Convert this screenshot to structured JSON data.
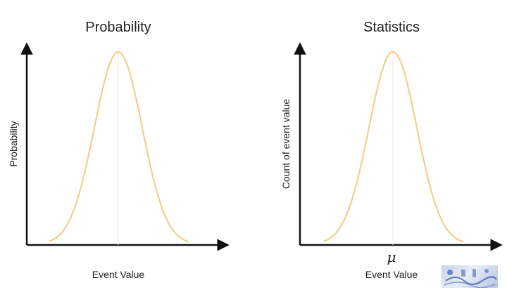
{
  "chart_data": [
    {
      "type": "line",
      "title": "Probability",
      "xlabel": "Event Value",
      "ylabel": "Probability",
      "x_tick_labels": [],
      "series": [
        {
          "shape": "normal-bell-curve",
          "color": "#f2cf8c",
          "mean_line": true
        }
      ]
    },
    {
      "type": "line",
      "title": "Statistics",
      "xlabel": "Event Value",
      "ylabel": "Count of event value",
      "x_tick_labels": [
        "μ"
      ],
      "series": [
        {
          "shape": "normal-bell-curve",
          "color": "#f2cf8c",
          "mean_line": true
        }
      ]
    }
  ],
  "colors": {
    "curve": "#f2cf8c",
    "mean_line": "#f5ead6",
    "axis": "#111111"
  },
  "watermark": {
    "icon": "logo-watermark-icon"
  }
}
